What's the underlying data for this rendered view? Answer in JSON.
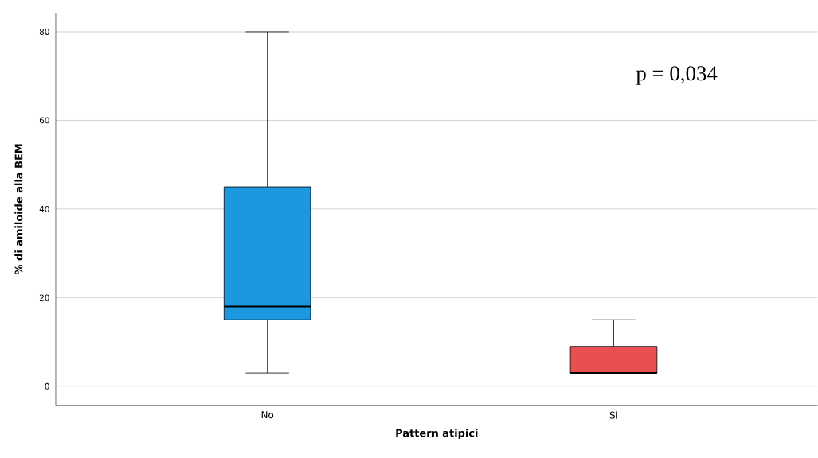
{
  "chart_data": {
    "type": "box",
    "xlabel": "Pattern atipici",
    "ylabel": "% di amiloide alla BEM",
    "categories": [
      "No",
      "Si"
    ],
    "boxes": [
      {
        "low": 3,
        "q1": 15,
        "median": 18,
        "q3": 45,
        "high": 80
      },
      {
        "low": 3,
        "q1": 3,
        "median": 3,
        "q3": 9,
        "high": 15
      }
    ],
    "colors": [
      "#1b98e0",
      "#e84f50"
    ],
    "ylim": [
      -4.3,
      84.3
    ],
    "yticks": [
      0,
      20,
      40,
      60,
      80
    ],
    "grid": "y",
    "annotations": [
      "p = 0,034"
    ]
  }
}
